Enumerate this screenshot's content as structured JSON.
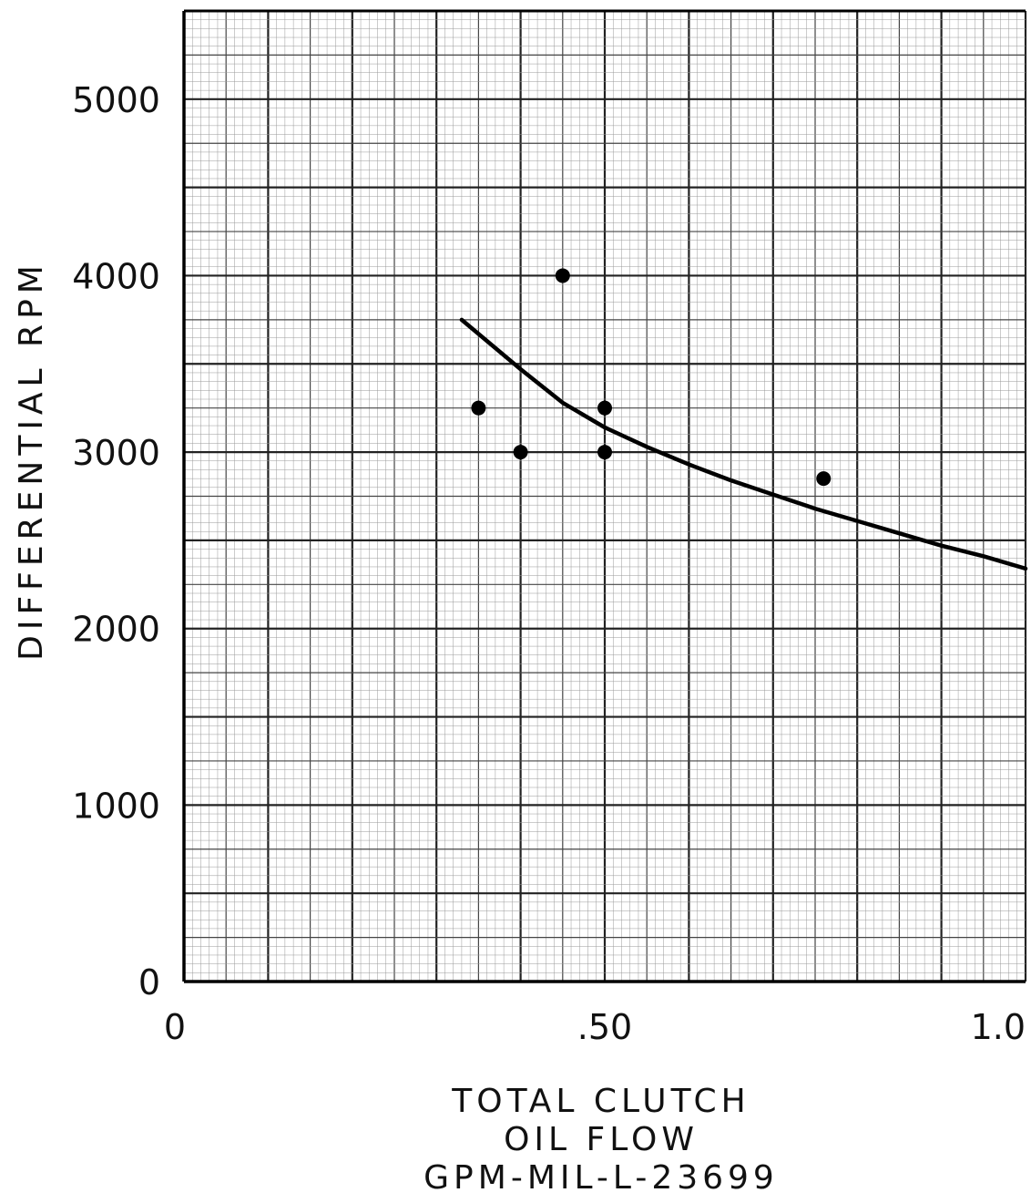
{
  "chart_data": {
    "type": "scatter",
    "xlabel": [
      "TOTAL CLUTCH",
      "OIL FLOW",
      "GPM-MIL-L-23699"
    ],
    "ylabel": "DIFFERENTIAL RPM",
    "xlim": [
      0,
      1.0
    ],
    "ylim": [
      0,
      5500
    ],
    "x_ticks": [
      {
        "value": 0,
        "label": "0"
      },
      {
        "value": 0.5,
        "label": ".50"
      },
      {
        "value": 1.0,
        "label": "1.0"
      }
    ],
    "y_ticks": [
      {
        "value": 0,
        "label": "0"
      },
      {
        "value": 1000,
        "label": "1000"
      },
      {
        "value": 2000,
        "label": "2000"
      },
      {
        "value": 3000,
        "label": "3000"
      },
      {
        "value": 4000,
        "label": "4000"
      },
      {
        "value": 5000,
        "label": "5000"
      }
    ],
    "grid": true,
    "points": [
      {
        "x": 0.35,
        "y": 3250
      },
      {
        "x": 0.4,
        "y": 3000
      },
      {
        "x": 0.45,
        "y": 4000
      },
      {
        "x": 0.5,
        "y": 3250
      },
      {
        "x": 0.5,
        "y": 3000
      },
      {
        "x": 0.76,
        "y": 2850
      }
    ],
    "fit_curve": [
      {
        "x": 0.33,
        "y": 3750
      },
      {
        "x": 0.4,
        "y": 3470
      },
      {
        "x": 0.45,
        "y": 3280
      },
      {
        "x": 0.5,
        "y": 3140
      },
      {
        "x": 0.55,
        "y": 3030
      },
      {
        "x": 0.6,
        "y": 2930
      },
      {
        "x": 0.65,
        "y": 2840
      },
      {
        "x": 0.7,
        "y": 2760
      },
      {
        "x": 0.75,
        "y": 2680
      },
      {
        "x": 0.8,
        "y": 2610
      },
      {
        "x": 0.85,
        "y": 2540
      },
      {
        "x": 0.9,
        "y": 2470
      },
      {
        "x": 0.95,
        "y": 2410
      },
      {
        "x": 1.0,
        "y": 2340
      }
    ]
  }
}
